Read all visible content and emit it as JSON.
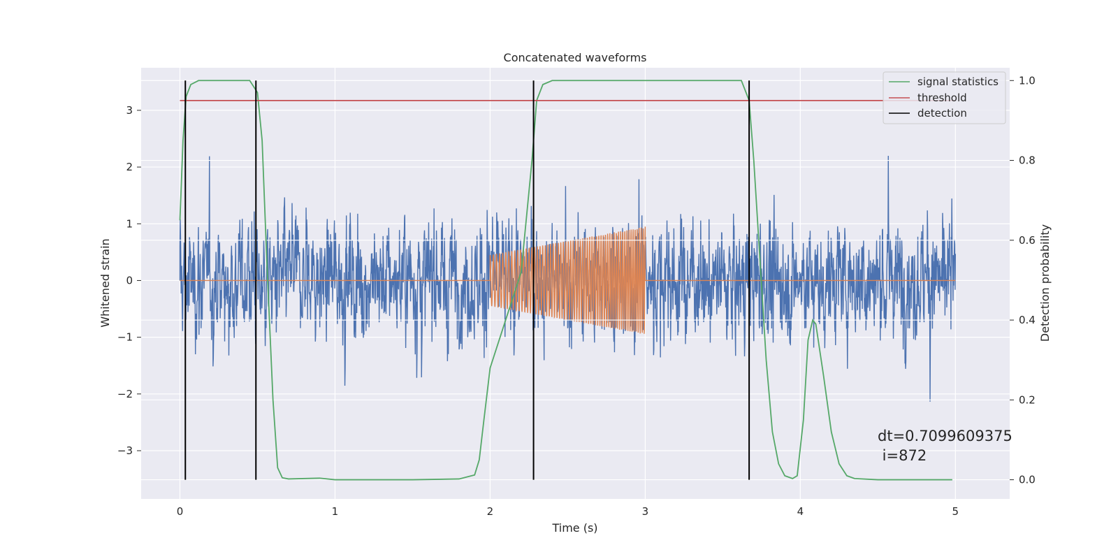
{
  "chart_data": {
    "type": "line",
    "title": "Concatenated waveforms",
    "xlabel": "Time (s)",
    "ylabel": "Whitened strain",
    "y2label": "Detection probability",
    "xlim": [
      -0.25,
      5.35
    ],
    "ylim": [
      -3.85,
      3.75
    ],
    "y2lim": [
      -0.048,
      1.032
    ],
    "x_ticks": [
      "0",
      "1",
      "2",
      "3",
      "4",
      "5"
    ],
    "y_ticks": [
      "3",
      "2",
      "1",
      "0",
      "−1",
      "−2",
      "−3"
    ],
    "y2_ticks": [
      "1.0",
      "0.8",
      "0.6",
      "0.4",
      "0.2",
      "0.0"
    ],
    "grid": true,
    "legend": {
      "position": "top-right",
      "entries": [
        "signal statistics",
        "threshold",
        "detection"
      ]
    },
    "series": [
      {
        "name": "signal statistics",
        "color": "#55a868",
        "axis": "right",
        "x": [
          0.0,
          0.02,
          0.04,
          0.07,
          0.12,
          0.45,
          0.5,
          0.53,
          0.56,
          0.6,
          0.63,
          0.66,
          0.7,
          0.9,
          1.0,
          1.5,
          1.8,
          1.9,
          1.93,
          1.96,
          2.0,
          2.1,
          2.2,
          2.27,
          2.3,
          2.34,
          2.4,
          3.62,
          3.67,
          3.7,
          3.74,
          3.78,
          3.82,
          3.86,
          3.9,
          3.95,
          3.98,
          4.02,
          4.05,
          4.08,
          4.1,
          4.15,
          4.2,
          4.25,
          4.3,
          4.35,
          4.5,
          4.98
        ],
        "y": [
          0.65,
          0.85,
          0.96,
          0.99,
          1.0,
          1.0,
          0.97,
          0.85,
          0.55,
          0.2,
          0.03,
          0.005,
          0.002,
          0.004,
          0.0,
          0.0,
          0.002,
          0.012,
          0.05,
          0.15,
          0.28,
          0.4,
          0.52,
          0.8,
          0.95,
          0.99,
          1.0,
          1.0,
          0.95,
          0.8,
          0.55,
          0.3,
          0.12,
          0.04,
          0.01,
          0.003,
          0.01,
          0.15,
          0.35,
          0.4,
          0.39,
          0.26,
          0.12,
          0.04,
          0.01,
          0.003,
          0.0,
          0.0
        ]
      },
      {
        "name": "threshold",
        "color": "#c44e52",
        "axis": "right",
        "x": [
          0.0,
          5.0
        ],
        "y": [
          0.95,
          0.95
        ]
      },
      {
        "name": "detection",
        "color": "#000000",
        "axis": "right",
        "vlines_x": [
          0.035,
          0.49,
          2.28,
          3.67
        ],
        "ymin": 0.0,
        "ymax": 1.0
      }
    ],
    "annotation": "dt=0.7099609375\n i=872"
  }
}
